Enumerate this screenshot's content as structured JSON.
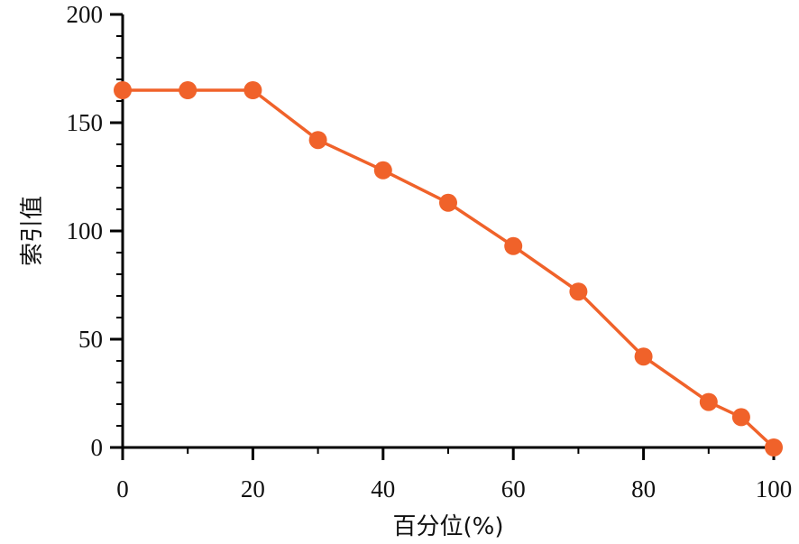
{
  "chart_data": {
    "type": "line",
    "title": "",
    "xlabel": "百分位(%)",
    "ylabel": "索引值",
    "xlim": [
      0,
      100
    ],
    "ylim": [
      0,
      200
    ],
    "x_ticks": [
      0,
      20,
      40,
      60,
      80,
      100
    ],
    "y_ticks": [
      0,
      50,
      100,
      150,
      200
    ],
    "x_tick_labels": [
      "0",
      "20",
      "40",
      "60",
      "80",
      "100"
    ],
    "y_tick_labels": [
      "0",
      "50",
      "100",
      "150",
      "200"
    ],
    "grid": false,
    "legend": "none",
    "series": [
      {
        "color": "#F0622A",
        "x": [
          0,
          10,
          20,
          30,
          40,
          50,
          60,
          70,
          80,
          90,
          95,
          100
        ],
        "values": [
          165,
          165,
          165,
          142,
          128,
          113,
          93,
          72,
          42,
          21,
          14,
          0
        ]
      }
    ]
  }
}
